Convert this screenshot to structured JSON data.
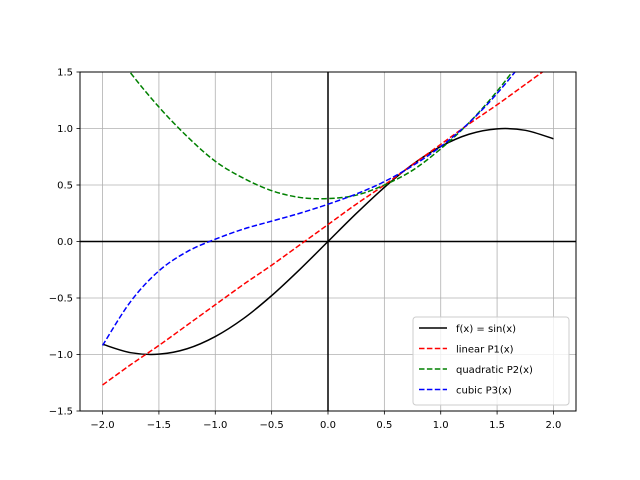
{
  "chart_data": {
    "type": "line",
    "title": "",
    "xlabel": "",
    "ylabel": "",
    "xlim": [
      -2.2,
      2.2
    ],
    "ylim": [
      -1.5,
      1.5
    ],
    "grid": true,
    "legend_position": "lower-right",
    "xticks": [
      -2.0,
      -1.5,
      -1.0,
      -0.5,
      0.0,
      0.5,
      1.0,
      1.5,
      2.0
    ],
    "xtick_labels": [
      "−2.0",
      "−1.5",
      "−1.0",
      "−0.5",
      "0.0",
      "0.5",
      "1.0",
      "1.5",
      "2.0"
    ],
    "yticks": [
      -1.5,
      -1.0,
      -0.5,
      0.0,
      0.5,
      1.0,
      1.5
    ],
    "ytick_labels": [
      "−1.5",
      "−1.0",
      "−0.5",
      "0.0",
      "0.5",
      "1.0",
      "1.5"
    ],
    "x": [
      -2.0,
      -1.75,
      -1.5,
      -1.25,
      -1.0,
      -0.75,
      -0.5,
      -0.25,
      0.0,
      0.25,
      0.5,
      0.75,
      1.0,
      1.25,
      1.5,
      1.75,
      2.0
    ],
    "series": [
      {
        "name": "f(x) = sin(x)",
        "color": "#000000",
        "style": "solid",
        "values": [
          -0.909,
          -0.984,
          -0.997,
          -0.949,
          -0.841,
          -0.682,
          -0.479,
          -0.247,
          0.0,
          0.247,
          0.479,
          0.682,
          0.841,
          0.949,
          0.997,
          0.984,
          0.909
        ]
      },
      {
        "name": "linear P1(x)",
        "color": "#ff0000",
        "style": "dashed",
        "values": [
          -1.27,
          -1.09,
          -0.92,
          -0.74,
          -0.56,
          -0.38,
          -0.21,
          -0.03,
          0.15,
          0.33,
          0.5,
          0.68,
          0.86,
          1.04,
          1.21,
          1.39,
          1.57
        ]
      },
      {
        "name": "quadratic P2(x)",
        "color": "#008000",
        "style": "dashed",
        "values": [
          1.83,
          1.49,
          1.19,
          0.93,
          0.71,
          0.56,
          0.45,
          0.39,
          0.38,
          0.41,
          0.5,
          0.63,
          0.82,
          1.05,
          1.33,
          1.66,
          2.04
        ]
      },
      {
        "name": "cubic P3(x)",
        "color": "#0000ff",
        "style": "dashed",
        "values": [
          -0.92,
          -0.53,
          -0.26,
          -0.09,
          0.02,
          0.11,
          0.18,
          0.25,
          0.33,
          0.42,
          0.53,
          0.67,
          0.84,
          1.05,
          1.31,
          1.62,
          1.99
        ]
      }
    ]
  }
}
